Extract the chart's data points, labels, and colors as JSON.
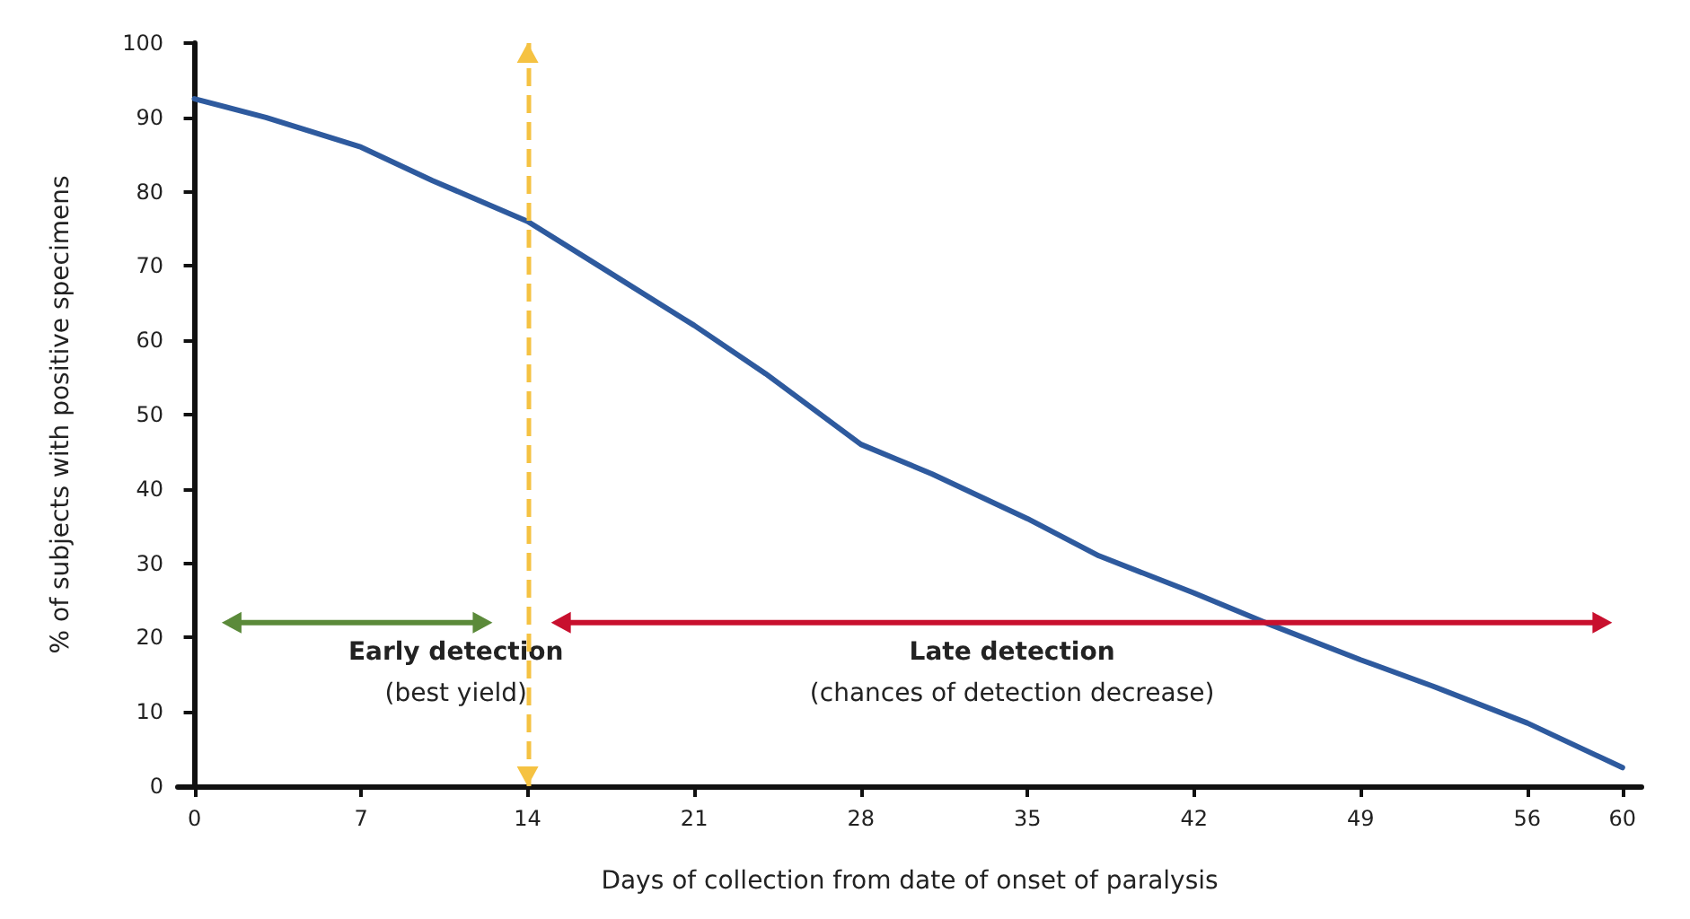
{
  "chart_data": {
    "type": "line",
    "xlabel": "Days of collection from date of onset of paralysis",
    "ylabel": "% of subjects with positive specimens",
    "x": [
      0,
      3,
      7,
      10,
      14,
      17,
      21,
      24,
      28,
      31,
      35,
      38,
      42,
      45,
      49,
      52,
      56,
      60
    ],
    "series": [
      {
        "color": "#2e5a9e",
        "values": [
          92.5,
          90,
          86,
          81.5,
          76,
          70,
          62,
          55.5,
          46,
          42,
          36,
          31,
          26,
          22,
          17,
          13.5,
          8.5,
          2.5
        ]
      }
    ],
    "xlim": [
      -0.7,
      60.8
    ],
    "xticks": [
      0,
      7,
      14,
      21,
      28,
      35,
      42,
      49,
      56,
      60
    ],
    "ylim": [
      0,
      100
    ],
    "yticks": [
      0,
      10,
      20,
      30,
      40,
      50,
      60,
      70,
      80,
      90,
      100
    ],
    "ref_lines": [
      {
        "axis": "x",
        "value": 14,
        "color": "#f5c242",
        "line_style": "dashed"
      }
    ],
    "annotations": [
      "Early detection",
      "(best yield)",
      "Late detection",
      "(chances of detection decrease)"
    ],
    "grid": false,
    "marker": "none",
    "line_style": "solid"
  }
}
